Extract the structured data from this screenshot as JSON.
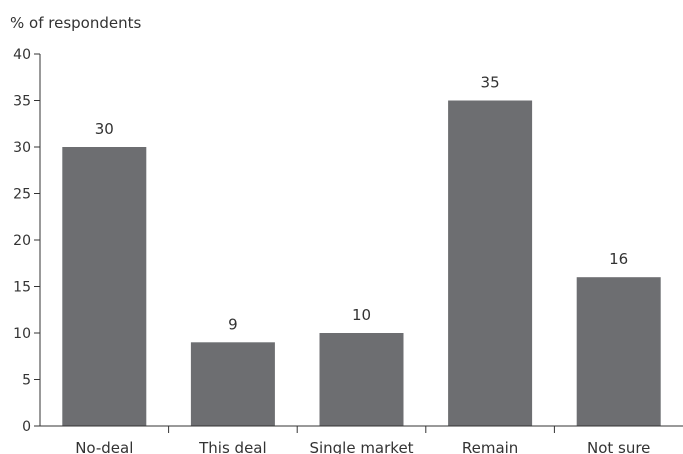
{
  "chart_data": {
    "type": "bar",
    "ylabel": "% of respondents",
    "xlabel": "",
    "categories": [
      "No-deal",
      "This deal",
      "Single market",
      "Remain",
      "Not sure"
    ],
    "values": [
      30,
      9,
      10,
      35,
      16
    ],
    "data_labels": [
      "30",
      "9",
      "10",
      "35",
      "16"
    ],
    "ylim": [
      0,
      40
    ],
    "yticks": [
      0,
      5,
      10,
      15,
      20,
      25,
      30,
      35,
      40
    ],
    "grid": false,
    "legend": "none",
    "bar_color": "#6d6e71",
    "axis_color": "#333333"
  }
}
